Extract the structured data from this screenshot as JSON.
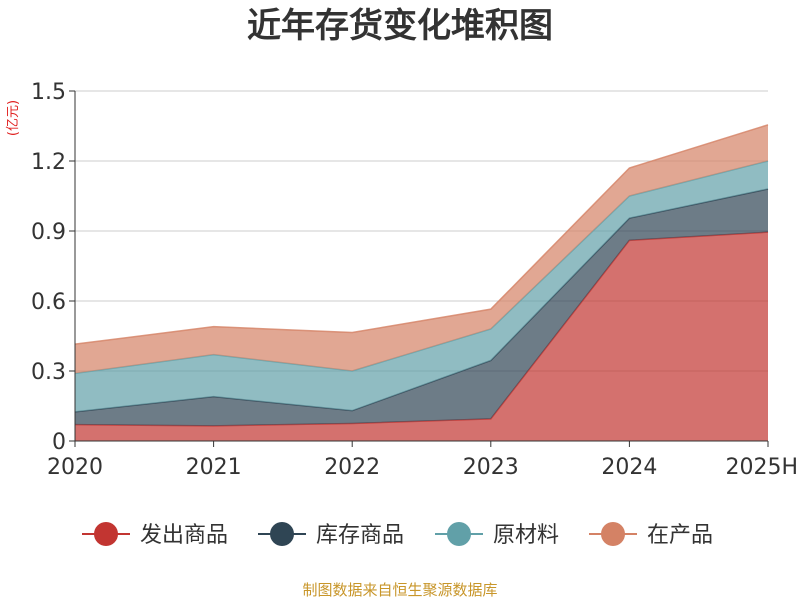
{
  "chart_data": {
    "type": "area",
    "stacked": true,
    "title": "近年存货变化堆积图",
    "unit": "(亿元)",
    "categories": [
      "2020",
      "2021",
      "2022",
      "2023",
      "2024",
      "2025H"
    ],
    "ylim": [
      0,
      1.5
    ],
    "yticks": [
      "0",
      "0.3",
      "0.6",
      "0.9",
      "1.2",
      "1.5"
    ],
    "ytick_values": [
      0,
      0.3,
      0.6,
      0.9,
      1.2,
      1.5
    ],
    "grid": true,
    "legend_position": "bottom",
    "series": [
      {
        "name": "发出商品",
        "color": "#c23531",
        "values": [
          0.07,
          0.065,
          0.075,
          0.095,
          0.86,
          0.895
        ]
      },
      {
        "name": "库存商品",
        "color": "#2f4554",
        "values": [
          0.055,
          0.125,
          0.055,
          0.25,
          0.095,
          0.185
        ]
      },
      {
        "name": "原材料",
        "color": "#61a0a8",
        "values": [
          0.165,
          0.18,
          0.17,
          0.135,
          0.095,
          0.12
        ]
      },
      {
        "name": "在产品",
        "color": "#d48265",
        "values": [
          0.125,
          0.12,
          0.165,
          0.085,
          0.12,
          0.155
        ]
      }
    ]
  },
  "footer": {
    "source": "制图数据来自恒生聚源数据库"
  }
}
